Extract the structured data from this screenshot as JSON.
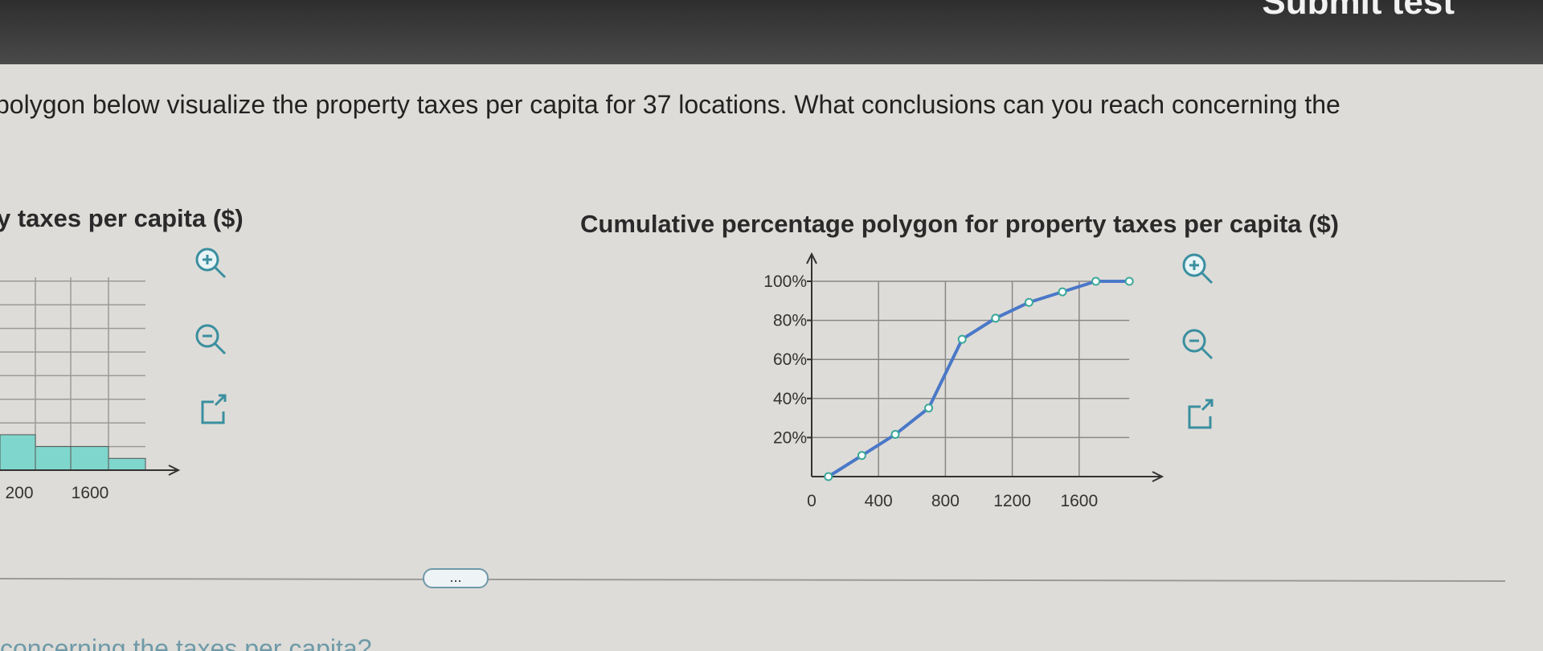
{
  "header": {
    "button": "Submit test"
  },
  "question": "polygon below visualize the property taxes per capita for 37 locations. What conclusions can you reach concerning the",
  "histogram": {
    "type": "histogram",
    "title": "y taxes per capita ($)",
    "values": [
      3,
      2,
      2,
      1
    ],
    "tick_labels": [
      "200",
      "1600"
    ],
    "color": "#7fd6cc"
  },
  "polygon": {
    "type": "line",
    "title": "Cumulative percentage polygon for property taxes per capita ($)",
    "x": [
      100,
      300,
      500,
      700,
      900,
      1100,
      1300,
      1500,
      1700,
      1900
    ],
    "values": [
      0,
      10.8,
      21.6,
      35.1,
      70.3,
      81.1,
      89.2,
      94.6,
      100,
      100
    ],
    "color": "#4a78c8",
    "marker_color": "#3aa89a",
    "xlim": [
      0,
      2000
    ],
    "ylim": [
      0,
      100
    ],
    "xticks": [
      0,
      400,
      800,
      1200,
      1600
    ],
    "yticks": [
      {
        "value": 20,
        "label": "20%"
      },
      {
        "value": 40,
        "label": "40%"
      },
      {
        "value": 60,
        "label": "60%"
      },
      {
        "value": 80,
        "label": "80%"
      },
      {
        "value": 100,
        "label": "100%"
      }
    ],
    "grid": true
  },
  "more_button": "...",
  "followup": "concerning the taxes per capita?"
}
